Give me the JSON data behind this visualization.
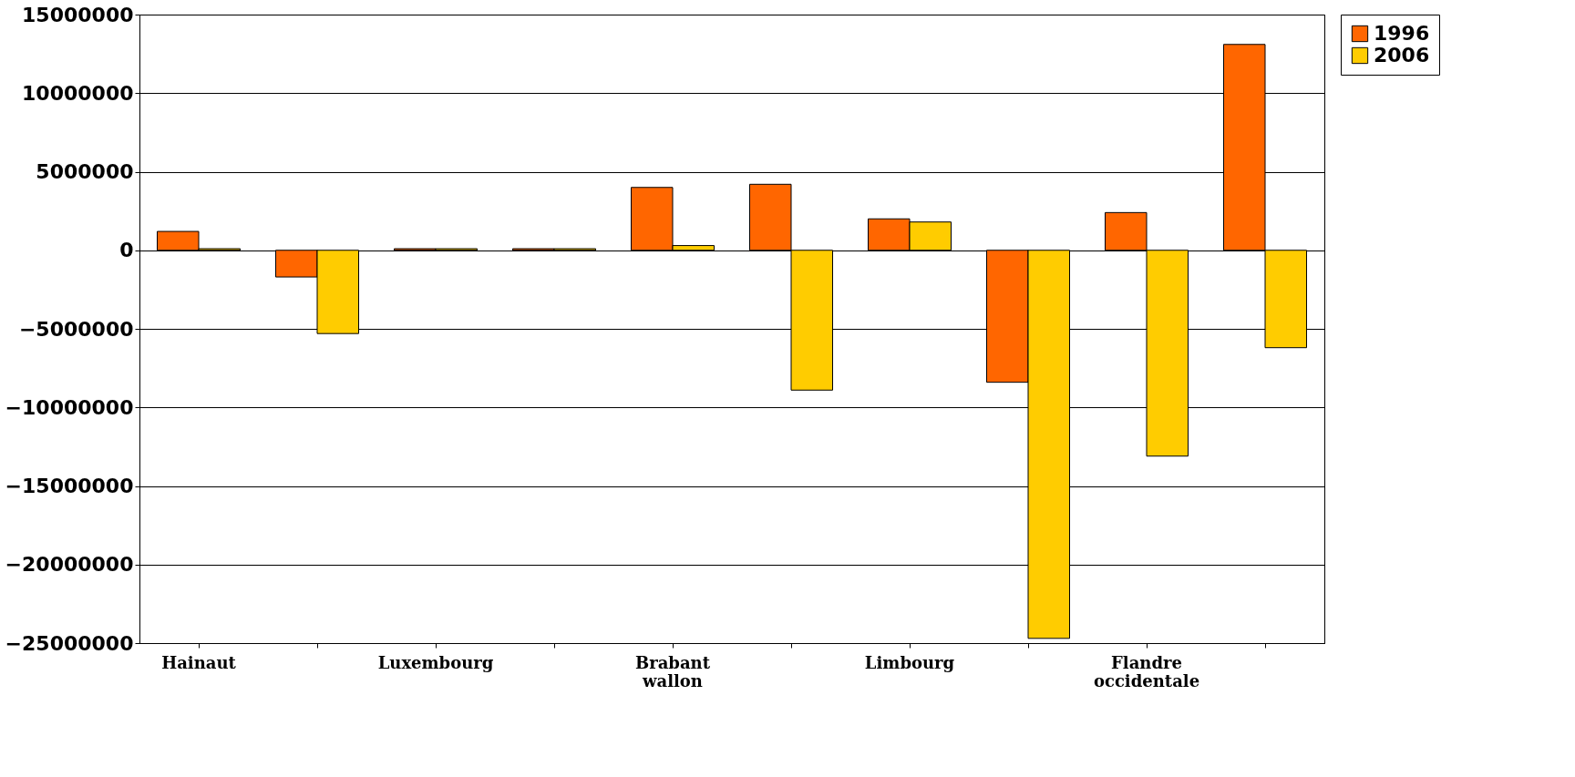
{
  "chart_data": {
    "type": "bar",
    "categories": [
      "Hainaut",
      null,
      "Luxembourg",
      null,
      "Brabant wallon",
      null,
      "Limbourg",
      null,
      "Flandre occidentale",
      null
    ],
    "series": [
      {
        "name": "1996",
        "color": "#ff6600",
        "values": [
          1200000,
          -1700000,
          100000,
          100000,
          4000000,
          4200000,
          2000000,
          -8400000,
          2400000,
          13100000
        ]
      },
      {
        "name": "2006",
        "color": "#ffcc00",
        "values": [
          100000,
          -5300000,
          100000,
          100000,
          300000,
          -8900000,
          1800000,
          -24700000,
          -13100000,
          -6200000
        ]
      }
    ],
    "ylim": [
      -25000000,
      15000000
    ],
    "yticks": [
      -25000000,
      -20000000,
      -15000000,
      -10000000,
      -5000000,
      0,
      5000000,
      10000000,
      15000000
    ],
    "grid": "y",
    "legend": "right"
  }
}
